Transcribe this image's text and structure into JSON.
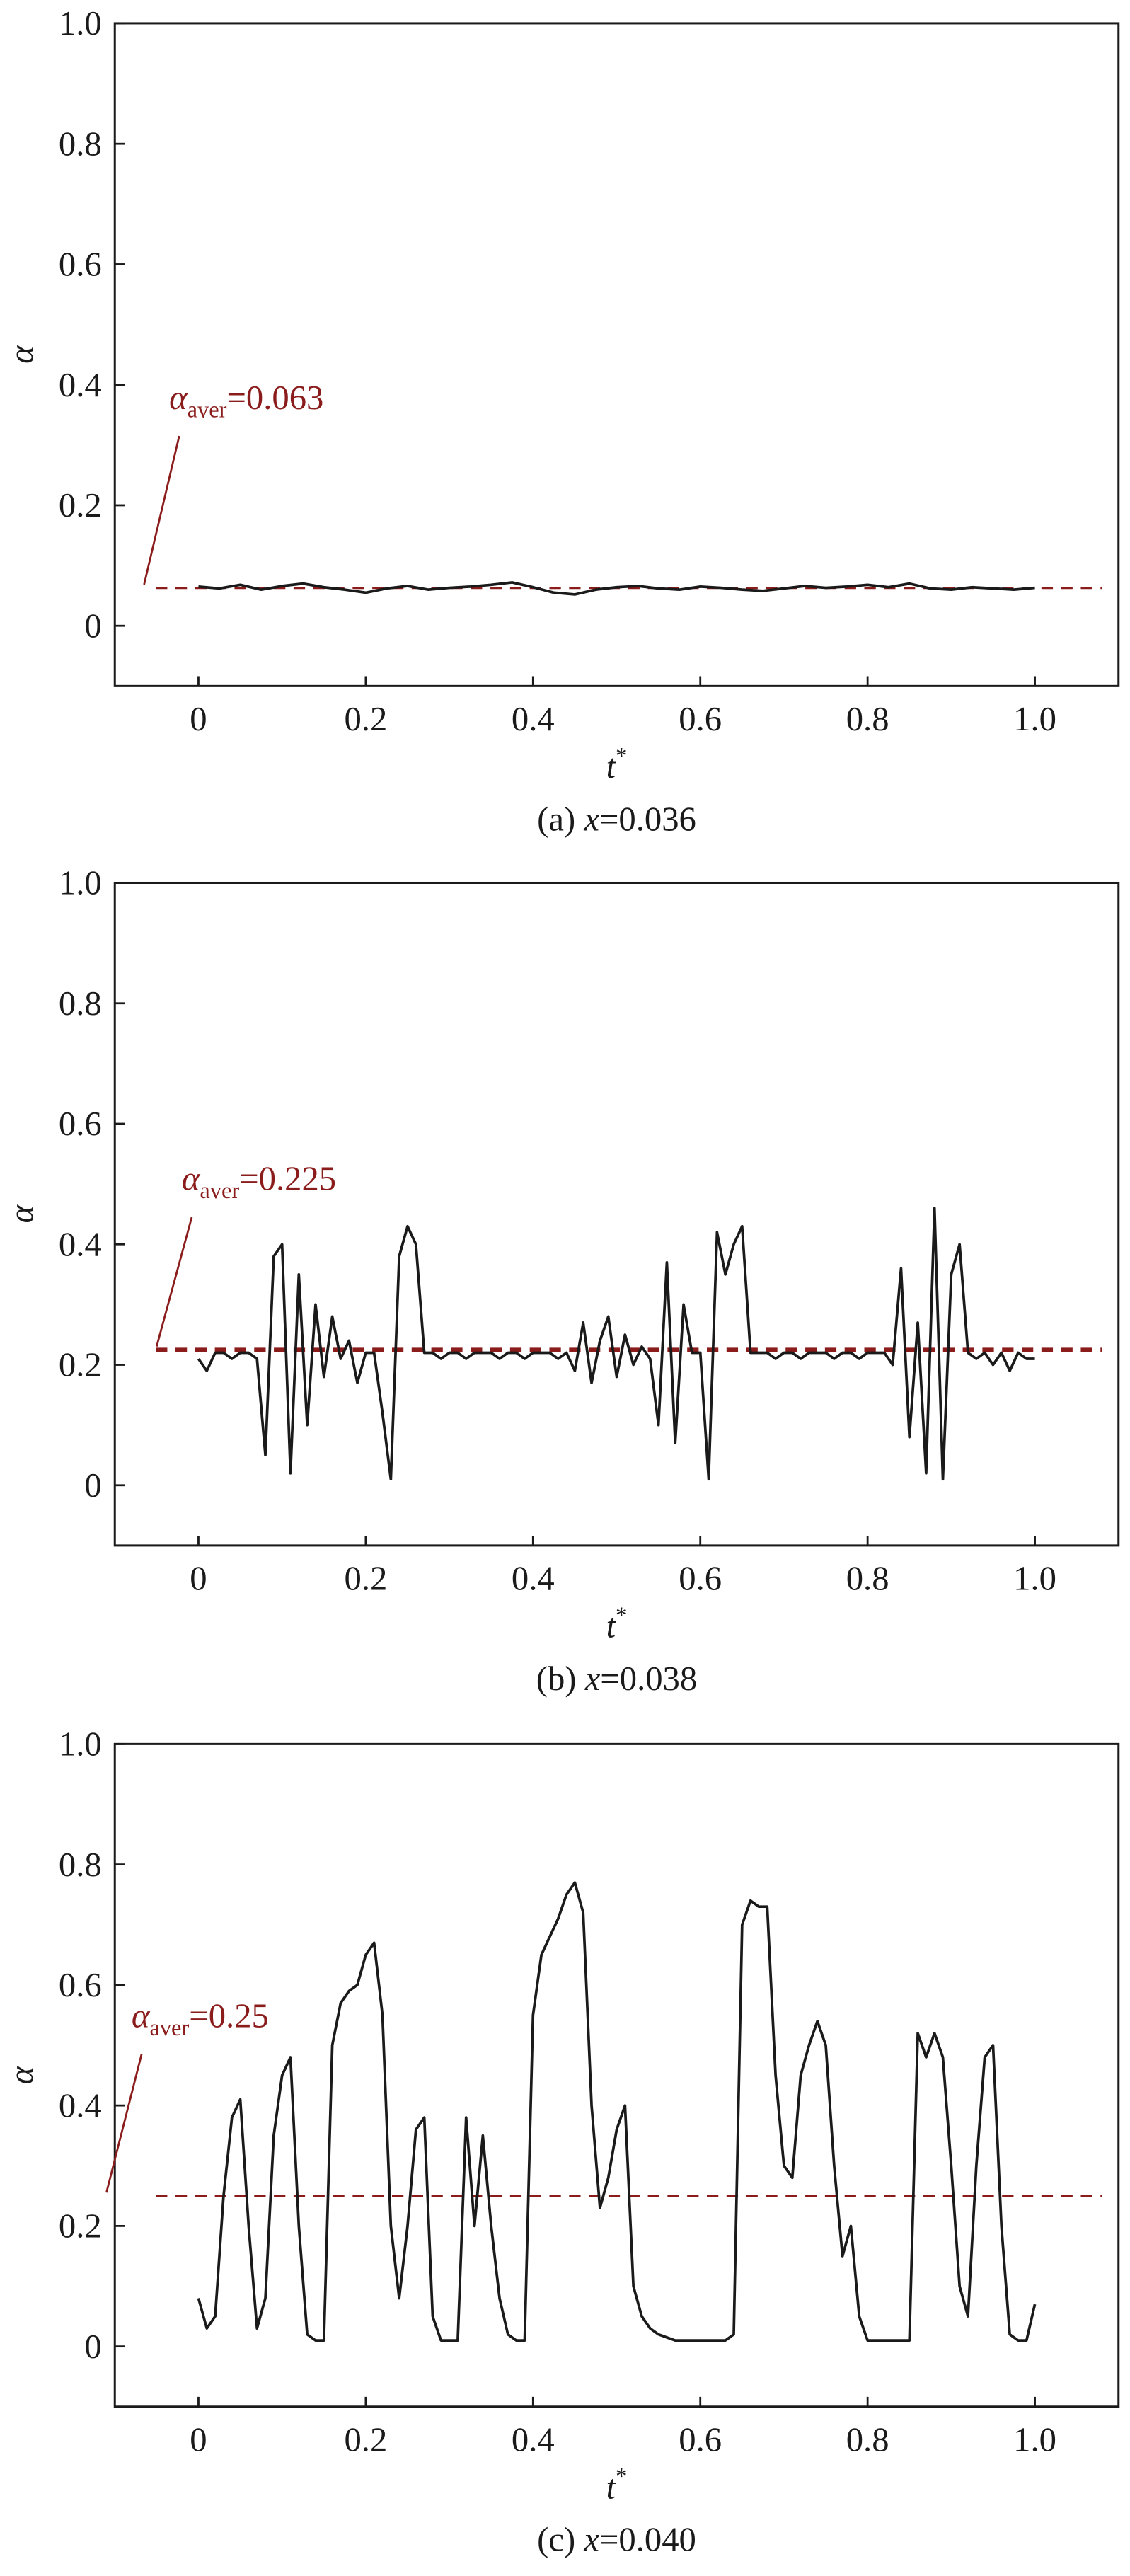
{
  "chart_data": [
    {
      "type": "line",
      "color": "#1a1a1a",
      "xlabel": {
        "text": "t",
        "sup": "*"
      },
      "ylabel": "α",
      "caption": {
        "prefix": "(a) ",
        "var": "x",
        "suffix": "=0.036"
      },
      "average": {
        "value": 0.063,
        "color": "#8b1c1c",
        "symbol": "α",
        "sub": "aver",
        "label": "=0.063"
      },
      "xlim": [
        -0.1,
        1.1
      ],
      "ylim": [
        -0.1,
        1.0
      ],
      "xticks": [
        0,
        0.2,
        0.4,
        0.6,
        0.8,
        {
          "value": 1,
          "label": "1.0"
        }
      ],
      "yticks": [
        0,
        0.2,
        0.4,
        0.6,
        0.8,
        {
          "value": 1,
          "label": "1.0"
        }
      ],
      "x": [
        0,
        0.025,
        0.05,
        0.075,
        0.1,
        0.125,
        0.15,
        0.175,
        0.2,
        0.225,
        0.25,
        0.275,
        0.3,
        0.325,
        0.35,
        0.375,
        0.4,
        0.425,
        0.45,
        0.475,
        0.5,
        0.525,
        0.55,
        0.575,
        0.6,
        0.625,
        0.65,
        0.675,
        0.7,
        0.725,
        0.75,
        0.775,
        0.8,
        0.825,
        0.85,
        0.875,
        0.9,
        0.925,
        0.95,
        0.975,
        1
      ],
      "values": [
        0.065,
        0.062,
        0.068,
        0.06,
        0.066,
        0.07,
        0.064,
        0.06,
        0.055,
        0.062,
        0.066,
        0.06,
        0.063,
        0.065,
        0.068,
        0.072,
        0.064,
        0.055,
        0.052,
        0.06,
        0.064,
        0.066,
        0.062,
        0.06,
        0.065,
        0.063,
        0.06,
        0.058,
        0.062,
        0.066,
        0.063,
        0.065,
        0.068,
        0.064,
        0.07,
        0.062,
        0.06,
        0.064,
        0.062,
        0.06,
        0.063
      ]
    },
    {
      "type": "line",
      "color": "#1a1a1a",
      "xlabel": {
        "text": "t",
        "sup": "*"
      },
      "ylabel": "α",
      "caption": {
        "prefix": "(b) ",
        "var": "x",
        "suffix": "=0.038"
      },
      "average": {
        "value": 0.225,
        "color": "#8b1c1c",
        "symbol": "α",
        "sub": "aver",
        "label": "=0.225"
      },
      "xlim": [
        -0.1,
        1.1
      ],
      "ylim": [
        -0.1,
        1.0
      ],
      "xticks": [
        0,
        0.2,
        0.4,
        0.6,
        0.8,
        {
          "value": 1,
          "label": "1.0"
        }
      ],
      "yticks": [
        0,
        0.2,
        0.4,
        0.6,
        0.8,
        {
          "value": 1,
          "label": "1.0"
        }
      ],
      "x": [
        0,
        0.01,
        0.02,
        0.03,
        0.04,
        0.05,
        0.06,
        0.07,
        0.08,
        0.09,
        0.1,
        0.11,
        0.12,
        0.13,
        0.14,
        0.15,
        0.16,
        0.17,
        0.18,
        0.19,
        0.2,
        0.21,
        0.22,
        0.23,
        0.24,
        0.25,
        0.26,
        0.27,
        0.28,
        0.29,
        0.3,
        0.31,
        0.32,
        0.33,
        0.34,
        0.35,
        0.36,
        0.37,
        0.38,
        0.39,
        0.4,
        0.41,
        0.42,
        0.43,
        0.44,
        0.45,
        0.46,
        0.47,
        0.48,
        0.49,
        0.5,
        0.51,
        0.52,
        0.53,
        0.54,
        0.55,
        0.56,
        0.57,
        0.58,
        0.59,
        0.6,
        0.61,
        0.62,
        0.63,
        0.64,
        0.65,
        0.66,
        0.67,
        0.68,
        0.69,
        0.7,
        0.71,
        0.72,
        0.73,
        0.74,
        0.75,
        0.76,
        0.77,
        0.78,
        0.79,
        0.8,
        0.81,
        0.82,
        0.83,
        0.84,
        0.85,
        0.86,
        0.87,
        0.88,
        0.89,
        0.9,
        0.91,
        0.92,
        0.93,
        0.94,
        0.95,
        0.96,
        0.97,
        0.98,
        0.99,
        1
      ],
      "values": [
        0.21,
        0.19,
        0.22,
        0.22,
        0.21,
        0.22,
        0.22,
        0.21,
        0.05,
        0.38,
        0.4,
        0.02,
        0.35,
        0.1,
        0.3,
        0.18,
        0.28,
        0.21,
        0.24,
        0.17,
        0.22,
        0.22,
        0.12,
        0.01,
        0.38,
        0.43,
        0.4,
        0.22,
        0.22,
        0.21,
        0.22,
        0.22,
        0.21,
        0.22,
        0.22,
        0.22,
        0.21,
        0.22,
        0.22,
        0.21,
        0.22,
        0.22,
        0.22,
        0.21,
        0.22,
        0.19,
        0.27,
        0.17,
        0.24,
        0.28,
        0.18,
        0.25,
        0.2,
        0.23,
        0.21,
        0.1,
        0.37,
        0.07,
        0.3,
        0.22,
        0.22,
        0.01,
        0.42,
        0.35,
        0.4,
        0.43,
        0.22,
        0.22,
        0.22,
        0.21,
        0.22,
        0.22,
        0.21,
        0.22,
        0.22,
        0.22,
        0.21,
        0.22,
        0.22,
        0.21,
        0.22,
        0.22,
        0.22,
        0.2,
        0.36,
        0.08,
        0.27,
        0.02,
        0.46,
        0.01,
        0.35,
        0.4,
        0.22,
        0.21,
        0.22,
        0.2,
        0.22,
        0.19,
        0.22,
        0.21,
        0.21
      ]
    },
    {
      "type": "line",
      "color": "#1a1a1a",
      "xlabel": {
        "text": "t",
        "sup": "*"
      },
      "ylabel": "α",
      "caption": {
        "prefix": "(c) ",
        "var": "x",
        "suffix": "=0.040"
      },
      "average": {
        "value": 0.25,
        "color": "#8b1c1c",
        "symbol": "α",
        "sub": "aver",
        "label": "=0.25"
      },
      "xlim": [
        -0.1,
        1.1
      ],
      "ylim": [
        -0.1,
        1.0
      ],
      "xticks": [
        0,
        0.2,
        0.4,
        0.6,
        0.8,
        {
          "value": 1,
          "label": "1.0"
        }
      ],
      "yticks": [
        0,
        0.2,
        0.4,
        0.6,
        0.8,
        {
          "value": 1,
          "label": "1.0"
        }
      ],
      "x": [
        0,
        0.01,
        0.02,
        0.03,
        0.04,
        0.05,
        0.06,
        0.07,
        0.08,
        0.09,
        0.1,
        0.11,
        0.12,
        0.13,
        0.14,
        0.15,
        0.16,
        0.17,
        0.18,
        0.19,
        0.2,
        0.21,
        0.22,
        0.23,
        0.24,
        0.25,
        0.26,
        0.27,
        0.28,
        0.29,
        0.3,
        0.31,
        0.32,
        0.33,
        0.34,
        0.35,
        0.36,
        0.37,
        0.38,
        0.39,
        0.4,
        0.41,
        0.42,
        0.43,
        0.44,
        0.45,
        0.46,
        0.47,
        0.48,
        0.49,
        0.5,
        0.51,
        0.52,
        0.53,
        0.54,
        0.55,
        0.56,
        0.57,
        0.58,
        0.59,
        0.6,
        0.61,
        0.62,
        0.63,
        0.64,
        0.65,
        0.66,
        0.67,
        0.68,
        0.69,
        0.7,
        0.71,
        0.72,
        0.73,
        0.74,
        0.75,
        0.76,
        0.77,
        0.78,
        0.79,
        0.8,
        0.81,
        0.82,
        0.83,
        0.84,
        0.85,
        0.86,
        0.87,
        0.88,
        0.89,
        0.9,
        0.91,
        0.92,
        0.93,
        0.94,
        0.95,
        0.96,
        0.97,
        0.98,
        0.99,
        1
      ],
      "values": [
        0.08,
        0.03,
        0.05,
        0.25,
        0.38,
        0.41,
        0.2,
        0.03,
        0.08,
        0.35,
        0.45,
        0.48,
        0.2,
        0.02,
        0.01,
        0.01,
        0.5,
        0.57,
        0.59,
        0.6,
        0.65,
        0.67,
        0.55,
        0.2,
        0.08,
        0.2,
        0.36,
        0.38,
        0.05,
        0.01,
        0.01,
        0.01,
        0.38,
        0.2,
        0.35,
        0.2,
        0.08,
        0.02,
        0.01,
        0.01,
        0.55,
        0.65,
        0.68,
        0.71,
        0.75,
        0.77,
        0.72,
        0.4,
        0.23,
        0.28,
        0.36,
        0.4,
        0.1,
        0.05,
        0.03,
        0.02,
        0.015,
        0.01,
        0.01,
        0.01,
        0.01,
        0.01,
        0.01,
        0.01,
        0.02,
        0.7,
        0.74,
        0.73,
        0.73,
        0.45,
        0.3,
        0.28,
        0.45,
        0.5,
        0.54,
        0.5,
        0.3,
        0.15,
        0.2,
        0.05,
        0.01,
        0.01,
        0.01,
        0.01,
        0.01,
        0.01,
        0.52,
        0.48,
        0.52,
        0.48,
        0.3,
        0.1,
        0.05,
        0.3,
        0.48,
        0.5,
        0.2,
        0.02,
        0.01,
        0.01,
        0.07
      ]
    }
  ]
}
